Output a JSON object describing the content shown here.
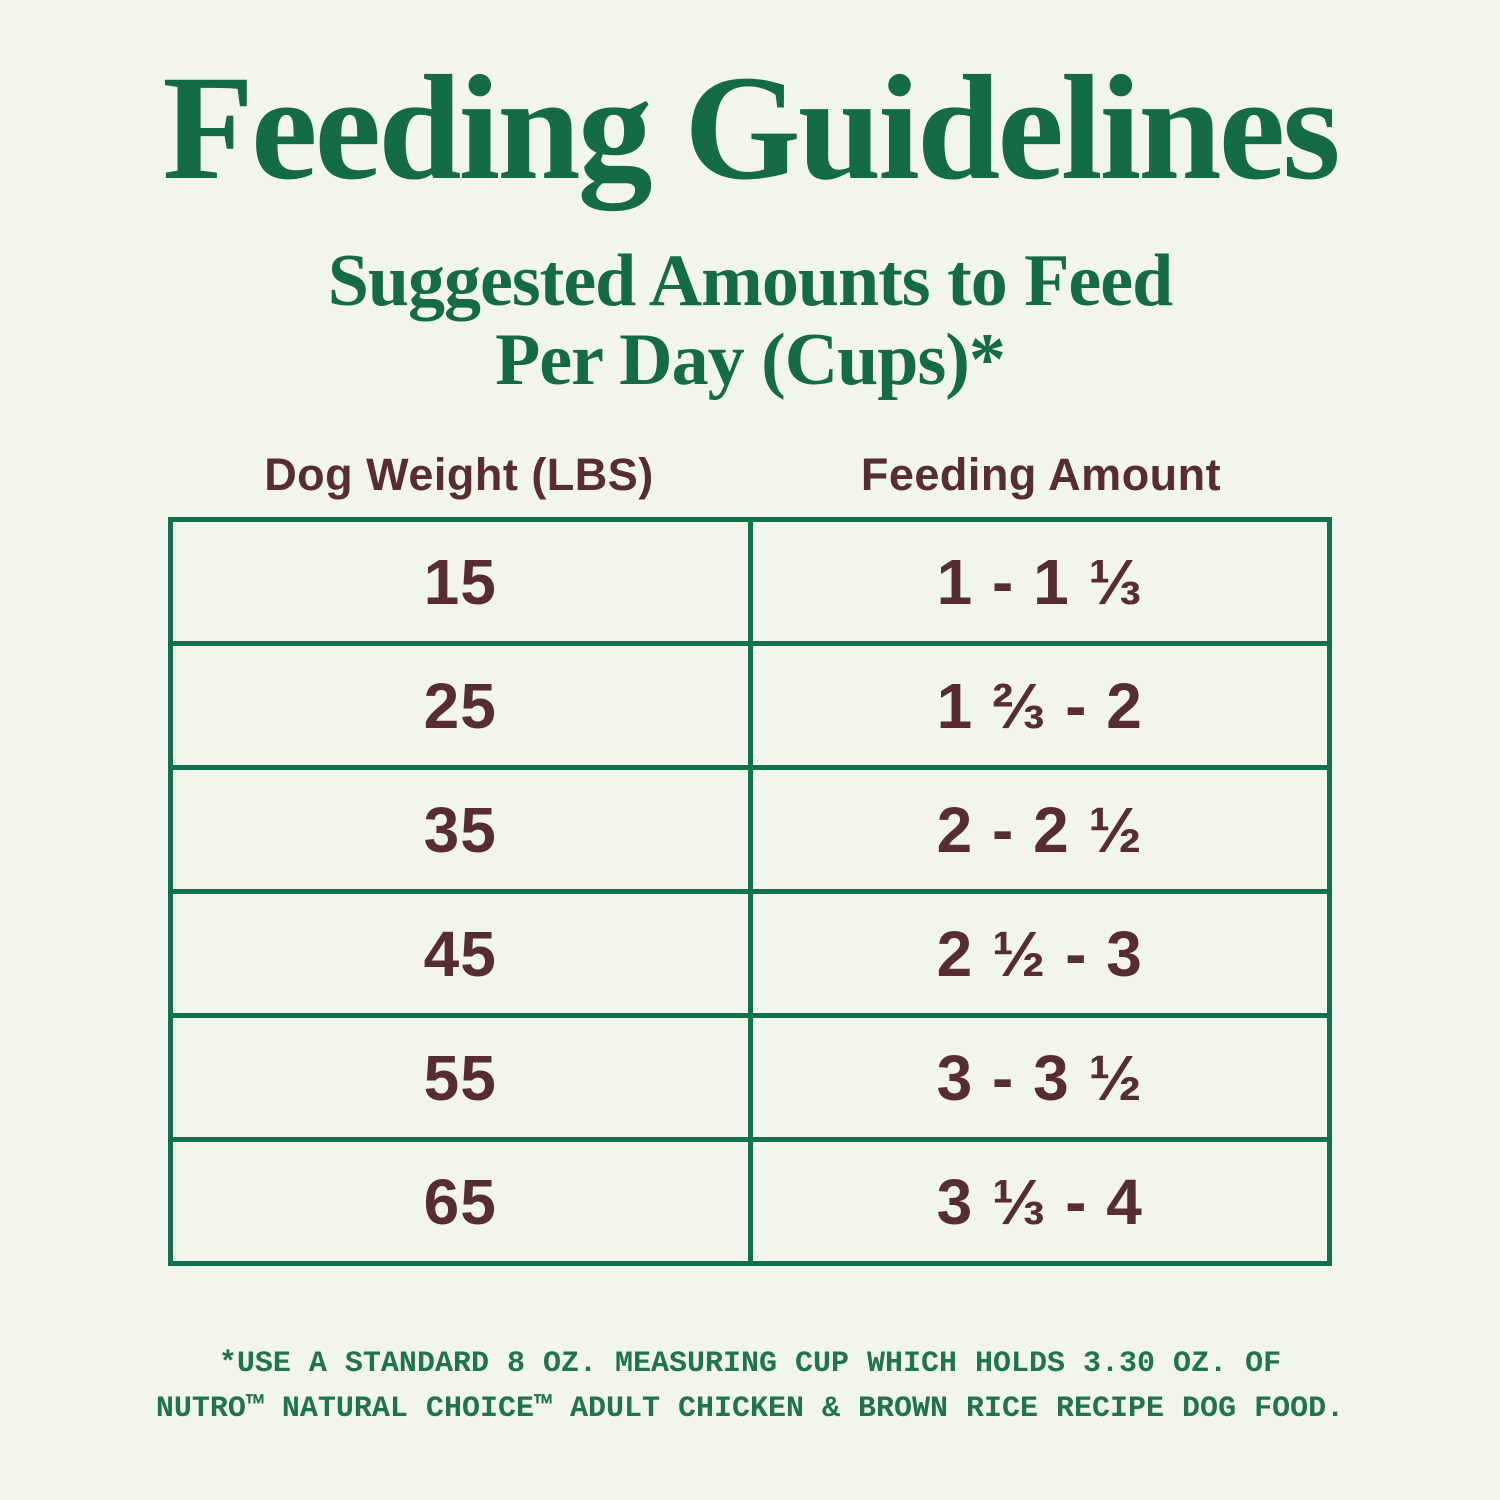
{
  "page": {
    "title": "Feeding Guidelines",
    "subtitle_line1": "Suggested Amounts to Feed",
    "subtitle_line2": "Per Day (Cups)*"
  },
  "table": {
    "col1_header": "Dog Weight (LBS)",
    "col2_header": "Feeding Amount",
    "rows": [
      {
        "weight": "15",
        "amount": "1 - 1 ⅓"
      },
      {
        "weight": "25",
        "amount": "1 ⅔ - 2"
      },
      {
        "weight": "35",
        "amount": "2 - 2 ½"
      },
      {
        "weight": "45",
        "amount": "2 ½ - 3"
      },
      {
        "weight": "55",
        "amount": "3 - 3 ½"
      },
      {
        "weight": "65",
        "amount": "3 ⅓ - 4"
      }
    ]
  },
  "footnote": {
    "line1": "*USE A STANDARD 8 OZ. MEASURING CUP WHICH HOLDS 3.30 OZ. OF",
    "line2": "NUTRO™ NATURAL CHOICE™ ADULT CHICKEN & BROWN RICE RECIPE DOG FOOD."
  },
  "colors": {
    "background": "#F2F5EC",
    "heading_green": "#156B45",
    "table_border_green": "#10714A",
    "value_maroon": "#572C33",
    "footnote_green": "#20734F"
  }
}
